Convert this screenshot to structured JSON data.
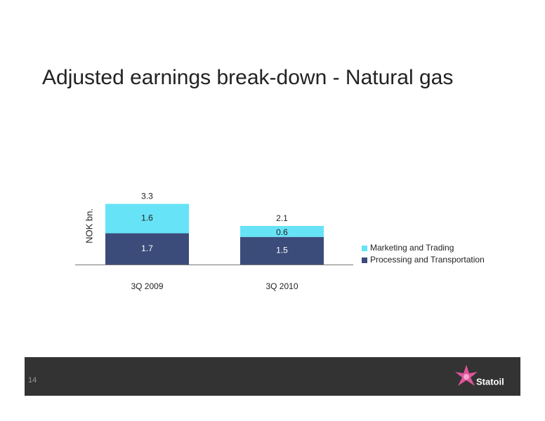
{
  "chart_data": {
    "type": "stacked_bar",
    "title": "Adjusted earnings break-down - Natural gas",
    "ylabel": "NOK bn.",
    "categories": [
      "3Q 2009",
      "3Q 2010"
    ],
    "series": [
      {
        "name": "Processing and Transportation",
        "color": "#3b4b7a",
        "values": [
          1.7,
          1.5
        ]
      },
      {
        "name": "Marketing and Trading",
        "color": "#66e3f7",
        "values": [
          1.6,
          0.6
        ]
      }
    ],
    "totals": [
      3.3,
      2.1
    ]
  },
  "footer": {
    "page_number": "14",
    "logo": "Statoil"
  }
}
